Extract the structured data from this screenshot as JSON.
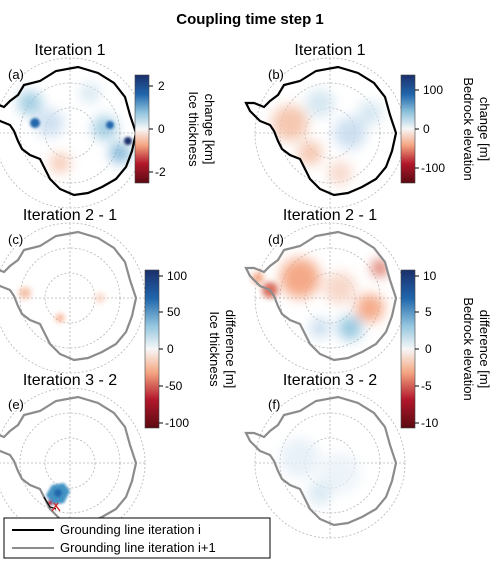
{
  "figure": {
    "title": "Coupling time step 1",
    "panels": [
      {
        "id": "a",
        "label": "(a)",
        "title": "Iteration 1",
        "field": "ice",
        "line": "black"
      },
      {
        "id": "b",
        "label": "(b)",
        "title": "Iteration 1",
        "field": "bedrock",
        "line": "black"
      },
      {
        "id": "c",
        "label": "(c)",
        "title": "Iteration 2 - 1",
        "field": "ice",
        "line": "gray"
      },
      {
        "id": "d",
        "label": "(d)",
        "title": "Iteration 2 - 1",
        "field": "bedrock",
        "line": "gray"
      },
      {
        "id": "e",
        "label": "(e)",
        "title": "Iteration 3 - 2",
        "field": "ice",
        "line": "gray"
      },
      {
        "id": "f",
        "label": "(f)",
        "title": "Iteration 3 - 2",
        "field": "bedrock",
        "line": "gray"
      }
    ],
    "colorbars": [
      {
        "id": "cb-ice-change",
        "label_lines": [
          "Ice thickness",
          "change [km]"
        ],
        "ticks": [
          "2",
          "0",
          "-2"
        ],
        "range": [
          -2.5,
          2.5
        ]
      },
      {
        "id": "cb-bed-change",
        "label_lines": [
          "Bedrock elevation",
          "change [m]"
        ],
        "ticks": [
          "100",
          "0",
          "-100"
        ],
        "range": [
          -150,
          150
        ]
      },
      {
        "id": "cb-ice-diff",
        "label_lines": [
          "Ice thickness",
          "difference [m]"
        ],
        "ticks": [
          "100",
          "50",
          "0",
          "-50",
          "-100"
        ],
        "range": [
          -100,
          100
        ]
      },
      {
        "id": "cb-bed-diff",
        "label_lines": [
          "Bedrock elevation",
          "difference [m]"
        ],
        "ticks": [
          "10",
          "5",
          "0",
          "-5",
          "-10"
        ],
        "range": [
          -10,
          10
        ]
      }
    ],
    "legend": {
      "entries": [
        {
          "label": "Grounding line iteration i",
          "color": "#000000"
        },
        {
          "label": "Grounding line iteration i+1",
          "color": "#8c8c8c"
        }
      ]
    },
    "colors": {
      "positive": "#2166ac",
      "negative": "#b2182b",
      "zero": "#f7f7f7"
    }
  }
}
